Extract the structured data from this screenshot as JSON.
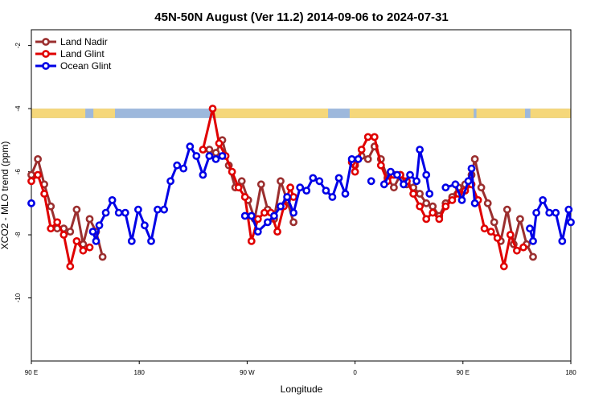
{
  "chart_data": {
    "type": "line",
    "title": "45N-50N August (Ver 11.2)   2014-09-06 to 2024-07-31",
    "xlabel": "Longitude",
    "ylabel": "XCO2 - MLO trend (ppm)",
    "xlim": [
      0,
      100
    ],
    "ylim": [
      -12,
      -1.5
    ],
    "x_ticks": [
      {
        "pos": 0,
        "label": "90 E"
      },
      {
        "pos": 20,
        "label": "180"
      },
      {
        "pos": 40,
        "label": "90 W"
      },
      {
        "pos": 60,
        "label": "0"
      },
      {
        "pos": 80,
        "label": "90 E"
      },
      {
        "pos": 100,
        "label": "180"
      }
    ],
    "y_ticks": [
      -2,
      -4,
      -6,
      -8,
      -10
    ],
    "legend_position": "top-left",
    "map_band": {
      "y_top": -4.0,
      "y_bottom": -4.3,
      "land_color": "#f5d77a",
      "ocean_color": "#9db8dc"
    },
    "series": [
      {
        "name": "Land Nadir",
        "color": "#9b2f2f",
        "points": [
          [
            0,
            -6.1
          ],
          [
            1.2,
            -5.6
          ],
          [
            2.4,
            -6.4
          ],
          [
            3.6,
            -7.1
          ],
          [
            4.8,
            -7.8
          ],
          [
            6,
            -7.8
          ],
          [
            7.2,
            -7.9
          ],
          [
            8.4,
            -7.2
          ],
          [
            9.6,
            -8.3
          ],
          [
            10.8,
            -7.5
          ],
          [
            12,
            -7.9
          ],
          [
            13.2,
            -8.7
          ],
          [
            33,
            -5.3
          ],
          [
            34.2,
            -5.4
          ],
          [
            35.4,
            -5.0
          ],
          [
            36.6,
            -5.8
          ],
          [
            37.8,
            -6.5
          ],
          [
            39,
            -6.3
          ],
          [
            40.2,
            -6.9
          ],
          [
            41.4,
            -7.5
          ],
          [
            42.6,
            -6.4
          ],
          [
            43.8,
            -7.2
          ],
          [
            45,
            -7.5
          ],
          [
            46.2,
            -6.3
          ],
          [
            47.4,
            -6.9
          ],
          [
            48.6,
            -7.6
          ],
          [
            60,
            -5.8
          ],
          [
            61.2,
            -5.5
          ],
          [
            62.4,
            -5.6
          ],
          [
            63.6,
            -5.2
          ],
          [
            64.8,
            -5.6
          ],
          [
            66,
            -6.2
          ],
          [
            67.2,
            -6.5
          ],
          [
            68.4,
            -6.1
          ],
          [
            69.6,
            -6.4
          ],
          [
            70.8,
            -6.5
          ],
          [
            72,
            -6.7
          ],
          [
            73.2,
            -7.0
          ],
          [
            74.4,
            -7.1
          ],
          [
            75.6,
            -7.4
          ],
          [
            76.8,
            -7.0
          ],
          [
            78,
            -6.8
          ],
          [
            79.2,
            -6.5
          ],
          [
            80.4,
            -6.4
          ],
          [
            81.6,
            -6.1
          ],
          [
            82.2,
            -5.6
          ],
          [
            83.4,
            -6.5
          ],
          [
            84.6,
            -7.0
          ],
          [
            85.8,
            -7.6
          ],
          [
            87,
            -8.2
          ],
          [
            88.2,
            -7.2
          ],
          [
            89.4,
            -8.3
          ],
          [
            90.6,
            -7.5
          ],
          [
            91.8,
            -8.3
          ],
          [
            93,
            -8.7
          ]
        ]
      },
      {
        "name": "Land Glint",
        "color": "#e00000",
        "points": [
          [
            0,
            -6.3
          ],
          [
            1.2,
            -6.1
          ],
          [
            2.4,
            -6.7
          ],
          [
            3.6,
            -7.8
          ],
          [
            4.8,
            -7.6
          ],
          [
            6,
            -8.0
          ],
          [
            7.2,
            -9.0
          ],
          [
            8.4,
            -8.2
          ],
          [
            9.6,
            -8.5
          ],
          [
            10.8,
            -8.4
          ],
          [
            31.8,
            -5.3
          ],
          [
            33.6,
            -4.0
          ],
          [
            34.8,
            -5.1
          ],
          [
            36,
            -5.5
          ],
          [
            37.2,
            -6.0
          ],
          [
            38.4,
            -6.5
          ],
          [
            39.6,
            -6.8
          ],
          [
            40.8,
            -8.2
          ],
          [
            42,
            -7.5
          ],
          [
            43.2,
            -7.3
          ],
          [
            44.4,
            -7.3
          ],
          [
            45.6,
            -7.9
          ],
          [
            46.8,
            -7.1
          ],
          [
            48,
            -6.5
          ],
          [
            48.6,
            -6.8
          ],
          [
            59.4,
            -5.7
          ],
          [
            60,
            -6.0
          ],
          [
            61.2,
            -5.3
          ],
          [
            62.4,
            -4.9
          ],
          [
            63.6,
            -4.9
          ],
          [
            64.8,
            -5.8
          ],
          [
            66,
            -6.3
          ],
          [
            67.2,
            -6.1
          ],
          [
            68.4,
            -6.1
          ],
          [
            69.6,
            -6.3
          ],
          [
            70.8,
            -6.7
          ],
          [
            72,
            -7.1
          ],
          [
            73.2,
            -7.5
          ],
          [
            74.4,
            -7.3
          ],
          [
            75.6,
            -7.5
          ],
          [
            76.8,
            -7.1
          ],
          [
            78,
            -6.9
          ],
          [
            79.2,
            -6.7
          ],
          [
            80.4,
            -6.6
          ],
          [
            81.6,
            -6.4
          ],
          [
            82.8,
            -6.9
          ],
          [
            84,
            -7.8
          ],
          [
            85.2,
            -7.9
          ],
          [
            86.4,
            -8.1
          ],
          [
            87.6,
            -9.0
          ],
          [
            88.8,
            -8.0
          ],
          [
            90,
            -8.5
          ],
          [
            91.2,
            -8.4
          ]
        ]
      },
      {
        "name": "Ocean Glint",
        "color": "#0000e6",
        "points": [
          [
            0,
            -7.0
          ],
          [
            11.4,
            -7.9
          ],
          [
            12.0,
            -8.2
          ],
          [
            12.6,
            -7.7
          ],
          [
            13.8,
            -7.3
          ],
          [
            15,
            -6.9
          ],
          [
            16.2,
            -7.3
          ],
          [
            17.4,
            -7.3
          ],
          [
            18.6,
            -8.2
          ],
          [
            19.8,
            -7.2
          ],
          [
            21,
            -7.7
          ],
          [
            22.2,
            -8.2
          ],
          [
            23.4,
            -7.2
          ],
          [
            24.6,
            -7.2
          ],
          [
            25.8,
            -6.3
          ],
          [
            27,
            -5.8
          ],
          [
            28.2,
            -5.9
          ],
          [
            29.4,
            -5.2
          ],
          [
            30.6,
            -5.5
          ],
          [
            31.8,
            -6.1
          ],
          [
            33,
            -5.5
          ],
          [
            34.2,
            -5.6
          ],
          [
            35.4,
            -5.5
          ],
          [
            39.6,
            -7.4
          ],
          [
            40.8,
            -7.4
          ],
          [
            42,
            -7.9
          ],
          [
            43.8,
            -7.6
          ],
          [
            45,
            -7.4
          ],
          [
            46.2,
            -7.1
          ],
          [
            47.4,
            -6.8
          ],
          [
            48.6,
            -7.3
          ],
          [
            49.8,
            -6.5
          ],
          [
            51,
            -6.6
          ],
          [
            52.2,
            -6.2
          ],
          [
            53.4,
            -6.3
          ],
          [
            54.6,
            -6.6
          ],
          [
            55.8,
            -6.8
          ],
          [
            57,
            -6.2
          ],
          [
            58.2,
            -6.7
          ],
          [
            59.4,
            -5.6
          ],
          [
            60.6,
            -5.6
          ],
          [
            63,
            -6.3
          ],
          [
            65.4,
            -6.4
          ],
          [
            66.6,
            -6.0
          ],
          [
            67.8,
            -6.1
          ],
          [
            69,
            -6.4
          ],
          [
            70.2,
            -6.1
          ],
          [
            71.4,
            -6.3
          ],
          [
            72,
            -5.3
          ],
          [
            73.2,
            -6.1
          ],
          [
            73.8,
            -6.7
          ],
          [
            76.8,
            -6.5
          ],
          [
            78.6,
            -6.4
          ],
          [
            79.8,
            -6.9
          ],
          [
            81,
            -6.3
          ],
          [
            81.6,
            -5.9
          ],
          [
            82.2,
            -7.0
          ],
          [
            92.4,
            -7.8
          ],
          [
            93,
            -8.2
          ],
          [
            93.6,
            -7.3
          ],
          [
            94.8,
            -6.9
          ],
          [
            96,
            -7.3
          ],
          [
            97.2,
            -7.3
          ],
          [
            98.4,
            -8.2
          ],
          [
            99.6,
            -7.2
          ],
          [
            100,
            -7.6
          ]
        ]
      }
    ]
  }
}
